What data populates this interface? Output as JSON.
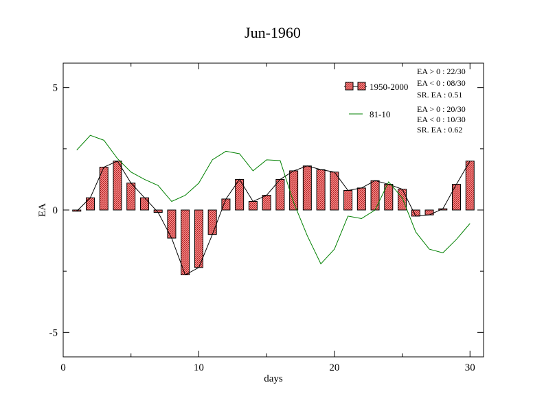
{
  "chart_data": {
    "type": "bar",
    "title": "Jun-1960",
    "xlabel": "days",
    "ylabel": "EA",
    "xlim": [
      0,
      31
    ],
    "ylim": [
      -6,
      6
    ],
    "xticks": [
      0,
      10,
      20,
      30
    ],
    "xtick_labels": [
      "0",
      "10",
      "20",
      "30"
    ],
    "yticks": [
      -5,
      0,
      5
    ],
    "ytick_labels": [
      "-5",
      "0",
      "5"
    ],
    "colors": {
      "bar_fill": "#f08080",
      "bar_hatch": "#c03030",
      "line_1950": "#000000",
      "line_8110": "#008000"
    },
    "x": [
      1,
      2,
      3,
      4,
      5,
      6,
      7,
      8,
      9,
      10,
      11,
      12,
      13,
      14,
      15,
      16,
      17,
      18,
      19,
      20,
      21,
      22,
      23,
      24,
      25,
      26,
      27,
      28,
      29,
      30
    ],
    "series": [
      {
        "name": "1950-2000",
        "kind": "bar+line",
        "values": [
          -0.05,
          0.5,
          1.75,
          2.0,
          1.1,
          0.5,
          -0.1,
          -1.15,
          -2.65,
          -2.35,
          -1.0,
          0.45,
          1.25,
          0.35,
          0.6,
          1.25,
          1.6,
          1.8,
          1.65,
          1.55,
          0.8,
          0.9,
          1.2,
          1.05,
          0.85,
          -0.25,
          -0.2,
          0.05,
          1.05,
          2.0
        ]
      },
      {
        "name": "81-10",
        "kind": "line",
        "values": [
          2.45,
          3.05,
          2.85,
          2.1,
          1.55,
          1.25,
          1.0,
          0.35,
          0.6,
          1.1,
          2.05,
          2.4,
          2.3,
          1.6,
          2.05,
          2.02,
          0.3,
          -1.05,
          -2.2,
          -1.6,
          -0.25,
          -0.35,
          0.0,
          1.15,
          0.5,
          -0.9,
          -1.6,
          -1.75,
          -1.2,
          -0.55
        ]
      }
    ],
    "legend": {
      "placement": "top-right",
      "entries": [
        {
          "label": "1950-2000",
          "stats": [
            "EA > 0 : 22/30",
            "EA < 0 : 08/30",
            "SR. EA :  0.51"
          ]
        },
        {
          "label": "81-10",
          "stats": [
            "EA > 0 : 20/30",
            "EA < 0 : 10/30",
            "SR. EA :  0.62"
          ]
        }
      ]
    }
  }
}
